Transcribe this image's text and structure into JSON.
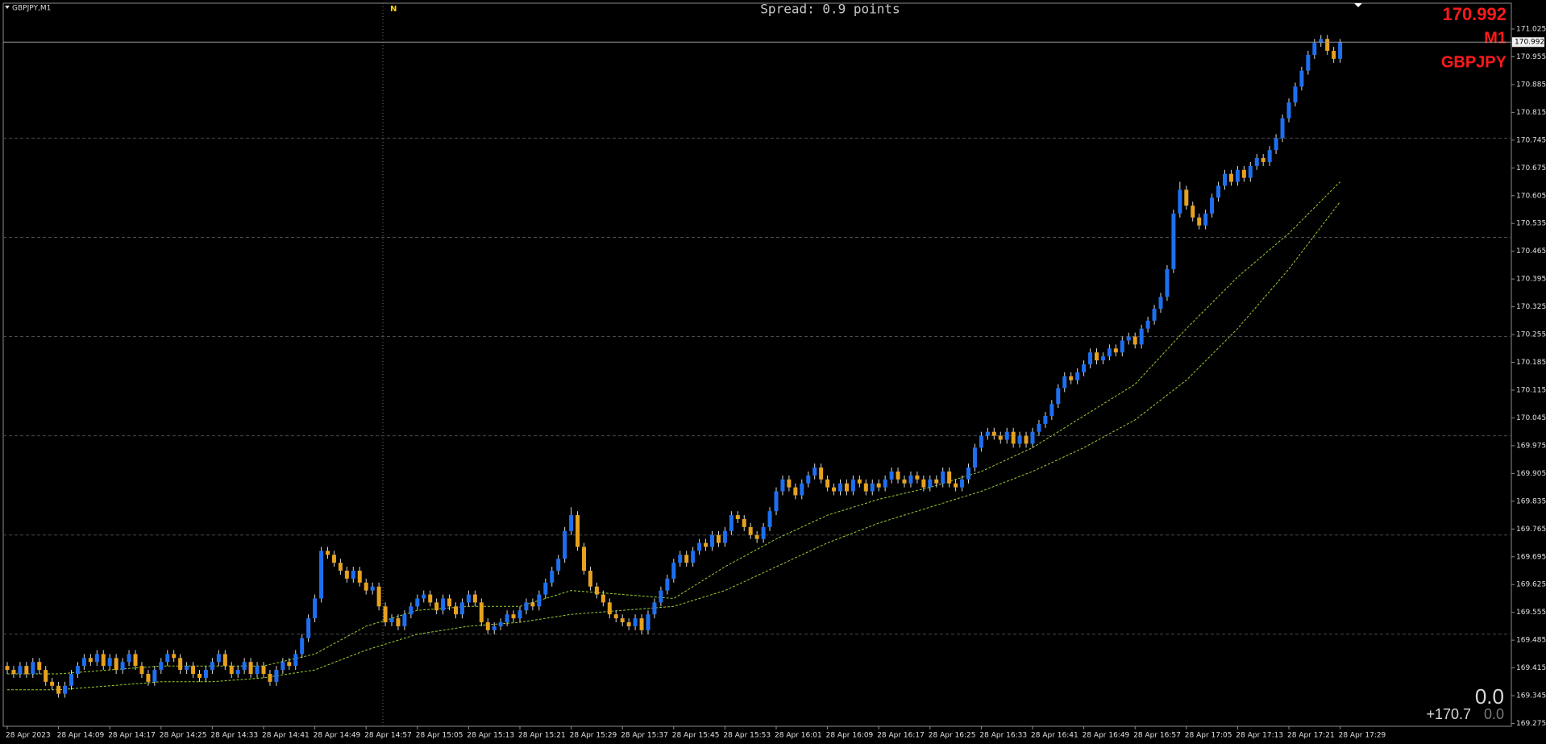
{
  "chart_data": {
    "type": "candlestick",
    "symbol_label": "GBPJPY,M1",
    "spread": "Spread: 0.9 points",
    "marker": "N",
    "bid": 170.992,
    "timeframe": "M1",
    "symbol": "GBPJPY",
    "corner": {
      "value": "0.0",
      "change": "+170.7",
      "small": "0.0"
    },
    "colors": {
      "up": "#1e6ff0",
      "down": "#e6a21e",
      "wick": "#d8d8d8"
    },
    "ylim": [
      169.27,
      171.09
    ],
    "yticks": [
      169.275,
      169.345,
      169.415,
      169.485,
      169.555,
      169.625,
      169.695,
      169.765,
      169.835,
      169.905,
      169.975,
      170.045,
      170.115,
      170.185,
      170.255,
      170.325,
      170.395,
      170.465,
      170.535,
      170.605,
      170.675,
      170.745,
      170.815,
      170.885,
      170.955,
      171.025
    ],
    "hlines": [
      170.75,
      170.5,
      170.25,
      170.0,
      169.75,
      169.5
    ],
    "xtick_labels": [
      "28 Apr 2023",
      "28 Apr 14:09",
      "28 Apr 14:17",
      "28 Apr 14:25",
      "28 Apr 14:33",
      "28 Apr 14:41",
      "28 Apr 14:49",
      "28 Apr 14:57",
      "28 Apr 15:05",
      "28 Apr 15:13",
      "28 Apr 15:21",
      "28 Apr 15:29",
      "28 Apr 15:37",
      "28 Apr 15:45",
      "28 Apr 15:53",
      "28 Apr 16:01",
      "28 Apr 16:09",
      "28 Apr 16:17",
      "28 Apr 16:25",
      "28 Apr 16:33",
      "28 Apr 16:41",
      "28 Apr 16:49",
      "28 Apr 16:57",
      "28 Apr 17:05",
      "28 Apr 17:13",
      "28 Apr 17:21",
      "28 Apr 17:29"
    ],
    "open": [
      169.42,
      169.41,
      169.4,
      169.42,
      169.4,
      169.43,
      169.41,
      169.38,
      169.37,
      169.35,
      169.37,
      169.4,
      169.42,
      169.44,
      169.43,
      169.45,
      169.42,
      169.44,
      169.41,
      169.43,
      169.45,
      169.42,
      169.4,
      169.38,
      169.41,
      169.43,
      169.45,
      169.44,
      169.41,
      169.42,
      169.4,
      169.39,
      169.41,
      169.43,
      169.45,
      169.42,
      169.4,
      169.41,
      169.43,
      169.4,
      169.42,
      169.4,
      169.38,
      169.41,
      169.43,
      169.42,
      169.45,
      169.49,
      169.54,
      169.59,
      169.71,
      169.7,
      169.68,
      169.66,
      169.64,
      169.66,
      169.63,
      169.61,
      169.62,
      169.57,
      169.53,
      169.54,
      169.52,
      169.55,
      169.57,
      169.59,
      169.6,
      169.58,
      169.56,
      169.59,
      169.57,
      169.55,
      169.58,
      169.6,
      169.58,
      169.53,
      169.51,
      169.52,
      169.53,
      169.55,
      169.54,
      169.56,
      169.58,
      169.57,
      169.6,
      169.63,
      169.66,
      169.69,
      169.76,
      169.8,
      169.72,
      169.66,
      169.62,
      169.6,
      169.58,
      169.55,
      169.54,
      169.53,
      169.52,
      169.54,
      169.51,
      169.55,
      169.58,
      169.61,
      169.64,
      169.68,
      169.7,
      169.68,
      169.71,
      169.73,
      169.72,
      169.75,
      169.73,
      169.76,
      169.8,
      169.79,
      169.77,
      169.75,
      169.74,
      169.77,
      169.81,
      169.86,
      169.89,
      169.87,
      169.85,
      169.88,
      169.9,
      169.92,
      169.89,
      169.87,
      169.86,
      169.88,
      169.86,
      169.89,
      169.88,
      169.86,
      169.88,
      169.87,
      169.89,
      169.91,
      169.89,
      169.88,
      169.9,
      169.89,
      169.87,
      169.89,
      169.88,
      169.91,
      169.88,
      169.87,
      169.89,
      169.92,
      169.97,
      170.0,
      170.01,
      170.0,
      169.99,
      170.01,
      169.98,
      170.0,
      169.98,
      170.01,
      170.03,
      170.05,
      170.08,
      170.12,
      170.15,
      170.14,
      170.16,
      170.18,
      170.21,
      170.19,
      170.2,
      170.22,
      170.21,
      170.24,
      170.25,
      170.23,
      170.27,
      170.29,
      170.32,
      170.35,
      170.42,
      170.56,
      170.62,
      170.58,
      170.55,
      170.53,
      170.56,
      170.6,
      170.63,
      170.66,
      170.64,
      170.67,
      170.65,
      170.68,
      170.7,
      170.69,
      170.72,
      170.75,
      170.8,
      170.84,
      170.88,
      170.92,
      170.96,
      170.99,
      171.0,
      170.97,
      170.95
    ],
    "high": [
      169.43,
      169.42,
      169.43,
      169.43,
      169.44,
      169.44,
      169.42,
      169.39,
      169.38,
      169.38,
      169.41,
      169.43,
      169.45,
      169.45,
      169.46,
      169.46,
      169.45,
      169.45,
      169.44,
      169.46,
      169.46,
      169.43,
      169.41,
      169.42,
      169.44,
      169.46,
      169.46,
      169.45,
      169.43,
      169.43,
      169.41,
      169.42,
      169.44,
      169.46,
      169.46,
      169.43,
      169.42,
      169.44,
      169.44,
      169.43,
      169.43,
      169.41,
      169.42,
      169.44,
      169.44,
      169.46,
      169.5,
      169.55,
      169.6,
      169.72,
      169.72,
      169.71,
      169.69,
      169.67,
      169.67,
      169.67,
      169.64,
      169.63,
      169.63,
      169.58,
      169.55,
      169.55,
      169.56,
      169.58,
      169.6,
      169.61,
      169.61,
      169.59,
      169.6,
      169.6,
      169.58,
      169.59,
      169.61,
      169.61,
      169.59,
      169.54,
      169.53,
      169.54,
      169.56,
      169.56,
      169.57,
      169.59,
      169.59,
      169.61,
      169.64,
      169.67,
      169.7,
      169.77,
      169.82,
      169.81,
      169.73,
      169.67,
      169.63,
      169.61,
      169.59,
      169.56,
      169.55,
      169.54,
      169.55,
      169.55,
      169.56,
      169.59,
      169.62,
      169.65,
      169.69,
      169.71,
      169.71,
      169.72,
      169.74,
      169.74,
      169.76,
      169.76,
      169.77,
      169.81,
      169.81,
      169.8,
      169.78,
      169.76,
      169.78,
      169.82,
      169.87,
      169.9,
      169.9,
      169.88,
      169.89,
      169.91,
      169.93,
      169.93,
      169.9,
      169.88,
      169.89,
      169.89,
      169.9,
      169.9,
      169.89,
      169.89,
      169.89,
      169.9,
      169.92,
      169.92,
      169.9,
      169.91,
      169.91,
      169.9,
      169.9,
      169.9,
      169.92,
      169.92,
      169.89,
      169.9,
      169.93,
      169.98,
      170.01,
      170.02,
      170.02,
      170.01,
      170.02,
      170.02,
      170.01,
      170.01,
      170.02,
      170.04,
      170.06,
      170.09,
      170.13,
      170.16,
      170.16,
      170.17,
      170.19,
      170.22,
      170.22,
      170.21,
      170.23,
      170.23,
      170.25,
      170.26,
      170.26,
      170.28,
      170.3,
      170.33,
      170.36,
      170.43,
      170.57,
      170.64,
      170.63,
      170.59,
      170.56,
      170.57,
      170.61,
      170.64,
      170.67,
      170.67,
      170.68,
      170.68,
      170.69,
      170.71,
      170.71,
      170.73,
      170.76,
      170.81,
      170.85,
      170.89,
      170.93,
      170.97,
      171.0,
      171.01,
      171.01,
      170.98,
      171.0
    ],
    "low": [
      169.4,
      169.39,
      169.39,
      169.39,
      169.39,
      169.4,
      169.37,
      169.36,
      169.34,
      169.34,
      169.36,
      169.39,
      169.41,
      169.42,
      169.42,
      169.41,
      169.41,
      169.4,
      169.4,
      169.42,
      169.41,
      169.39,
      169.37,
      169.37,
      169.4,
      169.42,
      169.43,
      169.4,
      169.4,
      169.39,
      169.38,
      169.38,
      169.4,
      169.42,
      169.41,
      169.39,
      169.39,
      169.4,
      169.39,
      169.39,
      169.39,
      169.37,
      169.37,
      169.4,
      169.41,
      169.41,
      169.44,
      169.48,
      169.53,
      169.58,
      169.69,
      169.67,
      169.65,
      169.63,
      169.63,
      169.62,
      169.6,
      169.6,
      169.56,
      169.52,
      169.52,
      169.51,
      169.51,
      169.54,
      169.56,
      169.58,
      169.57,
      169.55,
      169.55,
      169.56,
      169.54,
      169.54,
      169.57,
      169.57,
      169.52,
      169.5,
      169.5,
      169.51,
      169.52,
      169.53,
      169.53,
      169.55,
      169.56,
      169.56,
      169.59,
      169.62,
      169.65,
      169.68,
      169.75,
      169.71,
      169.65,
      169.61,
      169.59,
      169.57,
      169.54,
      169.53,
      169.52,
      169.51,
      169.51,
      169.5,
      169.5,
      169.54,
      169.57,
      169.6,
      169.63,
      169.67,
      169.67,
      169.67,
      169.7,
      169.71,
      169.71,
      169.72,
      169.72,
      169.75,
      169.78,
      169.76,
      169.74,
      169.73,
      169.73,
      169.76,
      169.8,
      169.85,
      169.86,
      169.84,
      169.84,
      169.87,
      169.89,
      169.88,
      169.86,
      169.85,
      169.85,
      169.85,
      169.85,
      169.87,
      169.85,
      169.85,
      169.86,
      169.86,
      169.88,
      169.88,
      169.87,
      169.87,
      169.88,
      169.86,
      169.86,
      169.87,
      169.87,
      169.87,
      169.86,
      169.86,
      169.88,
      169.91,
      169.96,
      169.99,
      169.99,
      169.98,
      169.98,
      169.97,
      169.97,
      169.97,
      169.97,
      170.0,
      170.02,
      170.04,
      170.07,
      170.11,
      170.13,
      170.13,
      170.15,
      170.17,
      170.18,
      170.18,
      170.19,
      170.2,
      170.2,
      170.23,
      170.22,
      170.22,
      170.26,
      170.28,
      170.31,
      170.34,
      170.41,
      170.55,
      170.57,
      170.54,
      170.52,
      170.52,
      170.55,
      170.59,
      170.62,
      170.63,
      170.63,
      170.64,
      170.64,
      170.67,
      170.68,
      170.68,
      170.71,
      170.74,
      170.79,
      170.83,
      170.87,
      170.91,
      170.95,
      170.98,
      170.96,
      170.94,
      170.94
    ],
    "close": [
      169.41,
      169.4,
      169.42,
      169.4,
      169.43,
      169.41,
      169.38,
      169.37,
      169.35,
      169.37,
      169.4,
      169.42,
      169.44,
      169.43,
      169.45,
      169.42,
      169.44,
      169.41,
      169.43,
      169.45,
      169.42,
      169.4,
      169.38,
      169.41,
      169.43,
      169.45,
      169.44,
      169.41,
      169.42,
      169.4,
      169.39,
      169.41,
      169.43,
      169.45,
      169.42,
      169.4,
      169.41,
      169.43,
      169.4,
      169.42,
      169.4,
      169.38,
      169.41,
      169.43,
      169.42,
      169.45,
      169.49,
      169.54,
      169.59,
      169.71,
      169.7,
      169.68,
      169.66,
      169.64,
      169.66,
      169.63,
      169.61,
      169.62,
      169.57,
      169.53,
      169.54,
      169.52,
      169.55,
      169.57,
      169.59,
      169.6,
      169.58,
      169.56,
      169.59,
      169.57,
      169.55,
      169.58,
      169.6,
      169.58,
      169.53,
      169.51,
      169.52,
      169.53,
      169.55,
      169.54,
      169.56,
      169.58,
      169.57,
      169.6,
      169.63,
      169.66,
      169.69,
      169.76,
      169.8,
      169.72,
      169.66,
      169.62,
      169.6,
      169.58,
      169.55,
      169.54,
      169.53,
      169.52,
      169.54,
      169.51,
      169.55,
      169.58,
      169.61,
      169.64,
      169.68,
      169.7,
      169.68,
      169.71,
      169.73,
      169.72,
      169.75,
      169.73,
      169.76,
      169.8,
      169.79,
      169.77,
      169.75,
      169.74,
      169.77,
      169.81,
      169.86,
      169.89,
      169.87,
      169.85,
      169.88,
      169.9,
      169.92,
      169.89,
      169.87,
      169.86,
      169.88,
      169.86,
      169.89,
      169.88,
      169.86,
      169.88,
      169.87,
      169.89,
      169.91,
      169.89,
      169.88,
      169.9,
      169.89,
      169.87,
      169.89,
      169.88,
      169.91,
      169.88,
      169.87,
      169.89,
      169.92,
      169.97,
      170.0,
      170.01,
      170.0,
      169.99,
      170.01,
      169.98,
      170.0,
      169.98,
      170.01,
      170.03,
      170.05,
      170.08,
      170.12,
      170.15,
      170.14,
      170.16,
      170.18,
      170.21,
      170.19,
      170.2,
      170.22,
      170.21,
      170.24,
      170.25,
      170.23,
      170.27,
      170.29,
      170.32,
      170.35,
      170.42,
      170.56,
      170.62,
      170.58,
      170.55,
      170.53,
      170.56,
      170.6,
      170.63,
      170.66,
      170.64,
      170.67,
      170.65,
      170.68,
      170.7,
      170.69,
      170.72,
      170.75,
      170.8,
      170.84,
      170.88,
      170.92,
      170.96,
      170.99,
      171.0,
      170.97,
      170.95,
      170.992
    ],
    "series": [
      {
        "color": "#9acd32",
        "values": [
          169.4,
          169.4,
          169.41,
          169.42,
          169.42,
          169.42,
          169.45,
          169.52,
          169.56,
          169.57,
          169.57,
          169.61,
          169.6,
          169.59,
          169.67,
          169.74,
          169.8,
          169.84,
          169.87,
          169.91,
          169.97,
          170.05,
          170.13,
          170.27,
          170.4,
          170.51,
          170.64
        ]
      },
      {
        "color": "#9acd32",
        "values": [
          169.36,
          169.36,
          169.37,
          169.38,
          169.38,
          169.39,
          169.41,
          169.46,
          169.5,
          169.52,
          169.53,
          169.55,
          169.56,
          169.57,
          169.61,
          169.67,
          169.73,
          169.78,
          169.82,
          169.86,
          169.91,
          169.97,
          170.04,
          170.14,
          170.27,
          170.42,
          170.59
        ]
      }
    ]
  }
}
